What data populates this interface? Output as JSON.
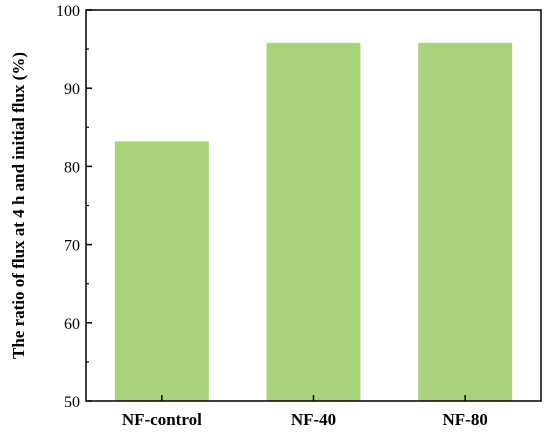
{
  "chart_data": {
    "type": "bar",
    "categories": [
      "NF-control",
      "NF-40",
      "NF-80"
    ],
    "values": [
      83.2,
      95.8,
      95.8
    ],
    "ylabel": "The ratio of flux at 4 h and initial flux (%)",
    "xlabel": "",
    "ylim": [
      50,
      100
    ],
    "yticks": [
      50,
      60,
      70,
      80,
      90,
      100
    ],
    "grid": false,
    "bar_color": "#a8d37a"
  }
}
